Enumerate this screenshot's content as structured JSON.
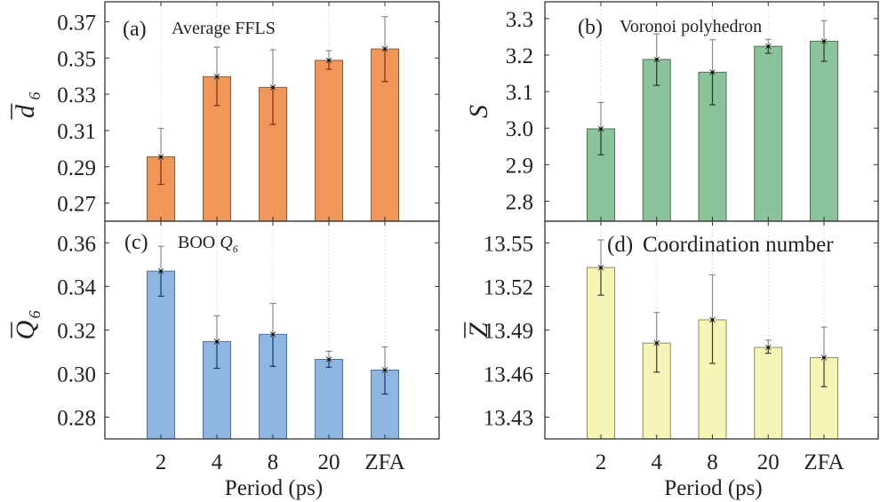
{
  "chart_data": [
    {
      "type": "bar",
      "panel": "(a)",
      "title": "Average FFLS",
      "xlabel": "",
      "ylabel": "d̄6",
      "ylabel_main": "d",
      "ylabel_sub": "6",
      "categories": [
        "2",
        "4",
        "8",
        "20",
        "ZFA"
      ],
      "values": [
        0.2955,
        0.3397,
        0.3338,
        0.3487,
        0.355
      ],
      "error_low": [
        0.2803,
        0.3238,
        0.3134,
        0.3438,
        0.337
      ],
      "error_high": [
        0.3112,
        0.356,
        0.3545,
        0.354,
        0.3728
      ],
      "ylim": [
        0.26,
        0.381
      ],
      "yticks": [
        0.27,
        0.29,
        0.31,
        0.33,
        0.35,
        0.37
      ],
      "ytick_labels": [
        "0.27",
        "0.29",
        "0.31",
        "0.33",
        "0.35",
        "0.37"
      ],
      "bar_color": "#ef9658",
      "edge_color": "#8a5a3a",
      "err_color": "#7a2e12",
      "grid": "vertical-dotted",
      "legend": "none"
    },
    {
      "type": "bar",
      "panel": "(b)",
      "title": "Voronoi polyhedron",
      "xlabel": "",
      "ylabel": "S",
      "ylabel_main": "S",
      "ylabel_sub": "",
      "categories": [
        "2",
        "4",
        "8",
        "20",
        "ZFA"
      ],
      "values": [
        2.998,
        3.188,
        3.153,
        3.224,
        3.238
      ],
      "error_low": [
        2.927,
        3.117,
        3.064,
        3.205,
        3.183
      ],
      "error_high": [
        3.07,
        3.258,
        3.242,
        3.243,
        3.294
      ],
      "ylim": [
        2.745,
        3.346
      ],
      "yticks": [
        2.8,
        2.9,
        3.0,
        3.1,
        3.2,
        3.3
      ],
      "ytick_labels": [
        "2.8",
        "2.9",
        "3.0",
        "3.1",
        "3.2",
        "3.3"
      ],
      "bar_color": "#8bc49a",
      "edge_color": "#4c6e55",
      "err_color": "#1f3a2a",
      "grid": "vertical-dotted",
      "legend": "none"
    },
    {
      "type": "bar",
      "panel": "(c)",
      "title": "BOO Q6",
      "title_main": "BOO ",
      "title_italic": "Q",
      "title_sub": "6",
      "xlabel": "Period (ps)",
      "ylabel": "Q̄6",
      "ylabel_main": "Q",
      "ylabel_sub": "6",
      "categories": [
        "2",
        "4",
        "8",
        "20",
        "ZFA"
      ],
      "values": [
        0.347,
        0.3147,
        0.318,
        0.3065,
        0.3016
      ],
      "error_low": [
        0.3355,
        0.3024,
        0.3033,
        0.3029,
        0.2906
      ],
      "error_high": [
        0.3584,
        0.3265,
        0.3322,
        0.3102,
        0.3122
      ],
      "ylim": [
        0.27,
        0.3699
      ],
      "yticks": [
        0.28,
        0.3,
        0.32,
        0.34,
        0.36
      ],
      "ytick_labels": [
        "0.28",
        "0.30",
        "0.32",
        "0.34",
        "0.36"
      ],
      "bar_color": "#8fb5e1",
      "edge_color": "#4a6f9a",
      "err_color": "#15385e",
      "grid": "vertical-dotted",
      "legend": "none"
    },
    {
      "type": "bar",
      "panel": "(d)",
      "title": "Coordination number",
      "xlabel": "Period (ps)",
      "ylabel": "Z̄",
      "ylabel_main": "Z",
      "ylabel_sub": "",
      "categories": [
        "2",
        "4",
        "8",
        "20",
        "ZFA"
      ],
      "values": [
        13.533,
        13.481,
        13.497,
        13.478,
        13.471
      ],
      "error_low": [
        13.514,
        13.461,
        13.467,
        13.474,
        13.451
      ],
      "error_high": [
        13.552,
        13.502,
        13.528,
        13.483,
        13.492
      ],
      "ylim": [
        13.415,
        13.5649
      ],
      "yticks": [
        13.43,
        13.46,
        13.49,
        13.52,
        13.55
      ],
      "ytick_labels": [
        "13.43",
        "13.46",
        "13.49",
        "13.52",
        "13.55"
      ],
      "bar_color": "#f7f5b5",
      "edge_color": "#8f8c62",
      "err_color": "#3a3a2a",
      "grid": "vertical-dotted",
      "legend": "none"
    }
  ]
}
